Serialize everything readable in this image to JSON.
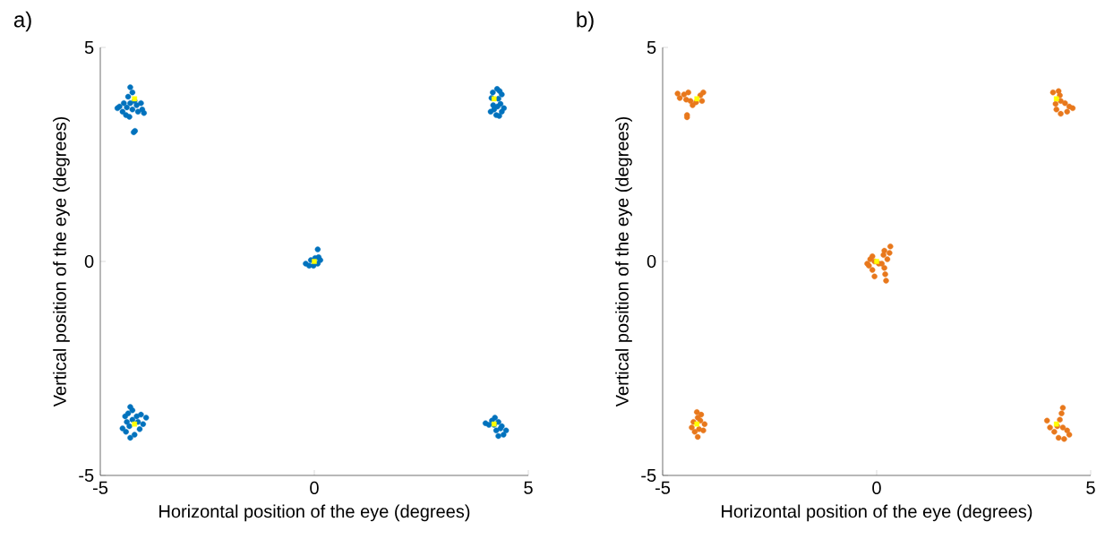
{
  "chart_data": [
    {
      "type": "scatter",
      "title": "a)",
      "xlabel": "Horizontal position of the eye (degrees)",
      "ylabel": "Vertical position of the eye (degrees)",
      "xlim": [
        -5,
        5
      ],
      "ylim": [
        -5,
        5
      ],
      "xticks": [
        -5,
        0,
        5
      ],
      "yticks": [
        -5,
        0,
        5
      ],
      "series": [
        {
          "color": "#0072bd",
          "marker": "circle",
          "x": [
            -4.3,
            -4.25,
            -4.35,
            -4.45,
            -4.55,
            -4.6,
            -4.48,
            -4.4,
            -4.32,
            -4.25,
            -4.15,
            -4.05,
            -4.02,
            -3.98,
            -4.12,
            -4.38,
            -4.3,
            -4.2,
            -4.19,
            -4.22,
            4.27,
            4.33,
            4.38,
            4.17,
            4.14,
            4.3,
            4.35,
            4.28,
            4.2,
            4.12,
            4.25,
            4.38,
            4.43,
            4.32,
            4.18,
            -4.3,
            -4.25,
            -4.35,
            -4.42,
            -4.38,
            -4.48,
            -4.4,
            -4.3,
            -4.2,
            -4.08,
            -4.0,
            -3.93,
            -4.05,
            -4.15,
            -4.25,
            -4.32,
            -4.12,
            4.22,
            4.15,
            4.0,
            4.08,
            4.2,
            4.3,
            4.38,
            4.48,
            4.42,
            4.3,
            4.25,
            4.35,
            -0.2,
            -0.12,
            -0.02,
            0.08,
            0.14,
            0.1,
            0.02,
            -0.08,
            0.08
          ],
          "values": [
            4.07,
            3.95,
            3.85,
            3.7,
            3.62,
            3.58,
            3.5,
            3.42,
            3.38,
            3.55,
            3.65,
            3.7,
            3.55,
            3.47,
            3.5,
            3.6,
            3.7,
            3.75,
            3.05,
            3.02,
            4.03,
            3.98,
            3.9,
            3.95,
            3.82,
            3.8,
            3.68,
            3.62,
            3.55,
            3.5,
            3.42,
            3.5,
            3.58,
            3.4,
            3.65,
            -3.4,
            -3.48,
            -3.55,
            -3.62,
            -3.75,
            -3.9,
            -3.98,
            -4.12,
            -4.05,
            -3.92,
            -3.8,
            -3.65,
            -3.58,
            -3.62,
            -3.7,
            -3.85,
            -3.75,
            -3.65,
            -3.72,
            -3.78,
            -3.82,
            -3.82,
            -3.75,
            -3.85,
            -3.95,
            -4.05,
            -4.08,
            -3.95,
            -3.9,
            -0.05,
            -0.1,
            -0.1,
            -0.05,
            0.03,
            0.1,
            0.08,
            0.03,
            0.28
          ]
        },
        {
          "color": "#ffff00",
          "marker": "square",
          "x": [
            -4.2,
            4.2,
            -4.2,
            4.2,
            0
          ],
          "values": [
            3.8,
            3.8,
            -3.8,
            -3.8,
            0
          ]
        }
      ]
    },
    {
      "type": "scatter",
      "title": "b)",
      "xlabel": "Horizontal position of the eye (degrees)",
      "ylabel": "Vertical position of the eye (degrees)",
      "xlim": [
        -5,
        5
      ],
      "ylim": [
        -5,
        5
      ],
      "xticks": [
        -5,
        0,
        5
      ],
      "yticks": [
        -5,
        0,
        5
      ],
      "series": [
        {
          "color": "#e8781c",
          "marker": "circle",
          "x": [
            -4.65,
            -4.6,
            -4.5,
            -4.4,
            -4.45,
            -4.35,
            -4.3,
            -4.22,
            -4.12,
            -4.05,
            -4.08,
            -4.43,
            -4.43,
            4.12,
            4.25,
            4.28,
            4.3,
            4.4,
            4.5,
            4.58,
            4.45,
            4.3,
            4.2,
            4.18,
            -4.2,
            -4.1,
            -4.12,
            -4.02,
            -4.05,
            -4.15,
            -4.25,
            -4.32,
            -4.28,
            -4.18,
            -4.18,
            4.35,
            4.32,
            4.28,
            4.35,
            4.45,
            4.5,
            4.38,
            4.25,
            4.15,
            4.05,
            3.98,
            4.22,
            -0.22,
            -0.15,
            -0.1,
            -0.05,
            0.05,
            0.12,
            0.18,
            0.2,
            0.22,
            0.25,
            0.3,
            0.32,
            0.18,
            0.16,
            -0.1,
            -0.05,
            -0.18
          ],
          "values": [
            3.92,
            3.82,
            3.9,
            3.95,
            3.78,
            3.75,
            3.65,
            3.72,
            3.88,
            3.95,
            3.75,
            3.37,
            3.42,
            3.95,
            3.98,
            3.88,
            3.75,
            3.7,
            3.62,
            3.58,
            3.5,
            3.45,
            3.55,
            3.68,
            -3.52,
            -3.58,
            -3.72,
            -3.8,
            -3.95,
            -3.92,
            -3.98,
            -3.88,
            -3.75,
            -4.1,
            -3.65,
            -3.42,
            -3.55,
            -3.7,
            -3.88,
            -3.95,
            -4.05,
            -4.15,
            -4.12,
            -3.98,
            -3.88,
            -3.72,
            -3.85,
            -0.05,
            0.05,
            0.12,
            0.0,
            -0.05,
            -0.05,
            -0.15,
            -0.3,
            -0.45,
            0.05,
            0.2,
            0.35,
            0.25,
            0.15,
            -0.2,
            -0.35,
            -0.1
          ]
        },
        {
          "color": "#ffff00",
          "marker": "square",
          "x": [
            -4.2,
            4.2,
            -4.2,
            4.2,
            0
          ],
          "values": [
            3.8,
            3.8,
            -3.8,
            -3.8,
            0
          ]
        }
      ]
    }
  ]
}
